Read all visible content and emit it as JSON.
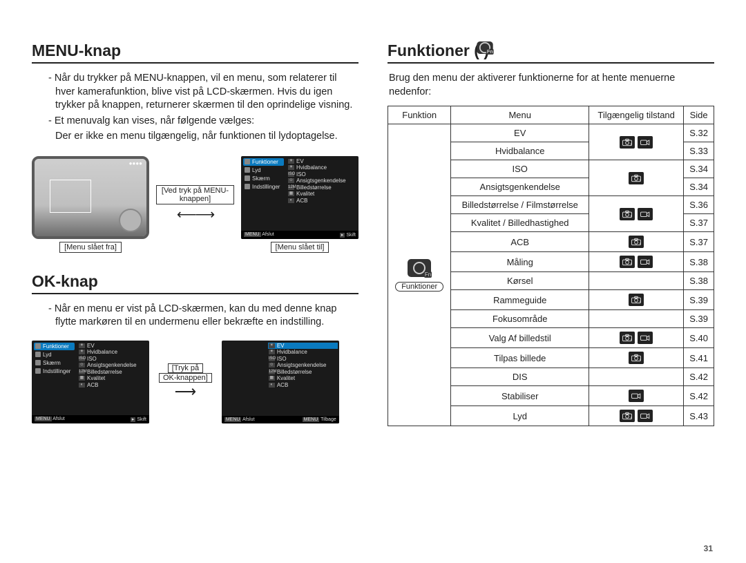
{
  "pageNumber": "31",
  "left": {
    "menuKnap": {
      "title": "MENU-knap",
      "b1": "- Når du trykker på MENU-knappen, vil en menu, som relaterer til hver kamerafunktion, blive vist på LCD-skærmen. Hvis du igen trykker på knappen, returnerer skærmen til den oprindelige visning.",
      "b2": "- Et menuvalg kan vises, når følgende vælges:",
      "b3": "Der er ikke en menu tilgængelig, når funktionen til lydoptagelse.",
      "fig": {
        "cap_left": "[Menu slået fra]",
        "cap_mid": "[Ved tryk på MENU-knappen]",
        "cap_right": "[Menu slået til]"
      }
    },
    "okKnap": {
      "title": "OK-knap",
      "b1": "- Når en menu er vist på LCD-skærmen, kan du med denne knap flytte markøren til en undermenu eller bekræfte en indstilling.",
      "fig": {
        "cap_mid1": "[Tryk på",
        "cap_mid2": "OK-knappen]"
      }
    },
    "menuPanel": {
      "leftItems": [
        "Funktioner",
        "Lyd",
        "Skærm",
        "Indstillinger"
      ],
      "rightItems": [
        "EV",
        "Hvidbalance",
        "ISO",
        "Ansigtsgenkendelse",
        "Billedstørrelse",
        "Kvalitet",
        "ACB"
      ],
      "footLeft": "Afslut",
      "footRight": "Skift",
      "footBack": "Tilbage"
    }
  },
  "right": {
    "title": "Funktioner (      )",
    "intro": "Brug den menu der aktiverer funktionerne for at hente menuerne nedenfor:",
    "funkLabel": "Funktioner",
    "headers": {
      "c1": "Funktion",
      "c2": "Menu",
      "c3": "Tilgængelig tilstand",
      "c4": "Side"
    },
    "rows": [
      {
        "menu": "EV",
        "modes": [
          "cam",
          "vid"
        ],
        "side": "S.32",
        "grouped": true
      },
      {
        "menu": "Hvidbalance",
        "modes": [
          "cam",
          "vid"
        ],
        "side": "S.33",
        "grouped": true
      },
      {
        "menu": "ISO",
        "modes": [
          "cam"
        ],
        "side": "S.34",
        "grouped": true
      },
      {
        "menu": "Ansigtsgenkendelse",
        "modes": [
          "cam"
        ],
        "side": "S.34",
        "grouped": true
      },
      {
        "menu": "Billedstørrelse / Filmstørrelse",
        "modes": [
          "cam",
          "vid"
        ],
        "side": "S.36",
        "grouped": true
      },
      {
        "menu": "Kvalitet / Billedhastighed",
        "modes": [
          "cam",
          "vid"
        ],
        "side": "S.37",
        "grouped": true
      },
      {
        "menu": "ACB",
        "modes": [
          "cam"
        ],
        "side": "S.37"
      },
      {
        "menu": "Måling",
        "modes": [
          "cam",
          "vid"
        ],
        "side": "S.38"
      },
      {
        "menu": "Kørsel",
        "modes": [],
        "side": "S.38"
      },
      {
        "menu": "Rammeguide",
        "modes": [
          "cam"
        ],
        "side": "S.39"
      },
      {
        "menu": "Fokusområde",
        "modes": [],
        "side": "S.39"
      },
      {
        "menu": "Valg Af billedstil",
        "modes": [
          "cam",
          "vid"
        ],
        "side": "S.40"
      },
      {
        "menu": "Tilpas billede",
        "modes": [
          "cam"
        ],
        "side": "S.41"
      },
      {
        "menu": "DIS",
        "modes": [],
        "side": "S.42"
      },
      {
        "menu": "Stabiliser",
        "modes": [
          "vid"
        ],
        "side": "S.42"
      },
      {
        "menu": "Lyd",
        "modes": [
          "cam",
          "vid"
        ],
        "side": "S.43"
      }
    ]
  },
  "colors": {
    "text": "#222222",
    "tableBorder": "#333333",
    "iconBg": "#222222",
    "menuActive": "#0a7abf"
  }
}
